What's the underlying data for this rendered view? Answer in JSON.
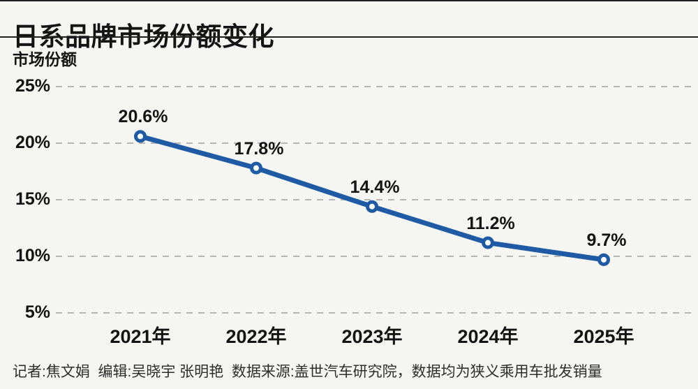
{
  "header": {
    "title": "日系品牌市场份额变化"
  },
  "chart": {
    "y_axis_title": "市场份额"
  },
  "footer": {
    "credits": "记者:焦文娟  编辑:吴晓宇 张明艳  数据来源:盖世汽车研究院，数据均为狭义乘用车批发销量"
  },
  "colors": {
    "line": "#1f5aa5",
    "marker_fill": "#ffffff",
    "background": "#f5f5f2",
    "grid": "#b5b5b5",
    "text": "#141414"
  },
  "chart_data": {
    "type": "line",
    "title": "日系品牌市场份额变化",
    "xlabel": "",
    "ylabel": "市场份额",
    "categories": [
      "2021年",
      "2022年",
      "2023年",
      "2024年",
      "2025年"
    ],
    "series": [
      {
        "name": "日系品牌市场份额",
        "values": [
          20.6,
          17.8,
          14.4,
          11.2,
          9.7
        ]
      }
    ],
    "data_labels": [
      "20.6%",
      "17.8%",
      "14.4%",
      "11.2%",
      "9.7%"
    ],
    "y_ticks": [
      "25%",
      "20%",
      "15%",
      "10%",
      "5%"
    ],
    "y_tick_values": [
      25,
      20,
      15,
      10,
      5
    ],
    "ylim": [
      5,
      25
    ],
    "grid": "horizontal-dashed",
    "legend": "none",
    "marker": "open-circle"
  }
}
